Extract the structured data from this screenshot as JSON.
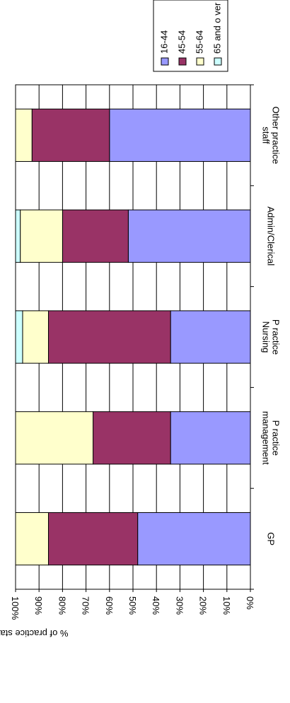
{
  "chart_data": {
    "type": "bar",
    "orientation": "vertical",
    "stacked": true,
    "rotation": "rotated-90-clockwise",
    "title": "",
    "xlabel": "",
    "ylabel": "% of practice staff",
    "ylim": [
      0,
      100
    ],
    "yticks": [
      "0%",
      "10%",
      "20%",
      "30%",
      "40%",
      "50%",
      "60%",
      "70%",
      "80%",
      "90%",
      "100%"
    ],
    "categories": [
      [
        "GP"
      ],
      [
        "P ractice",
        "management"
      ],
      [
        "P ractice",
        "Nursing"
      ],
      [
        "Admin/Clerical"
      ],
      [
        "Other practice",
        "staff"
      ]
    ],
    "series": [
      {
        "name": "16-44",
        "color": "#9999ff",
        "values": [
          48,
          34,
          34,
          52,
          60
        ]
      },
      {
        "name": "45-54",
        "color": "#993366",
        "values": [
          38,
          33,
          52,
          28,
          33
        ]
      },
      {
        "name": "55-64",
        "color": "#ffffcc",
        "values": [
          14,
          33,
          11,
          18,
          7
        ]
      },
      {
        "name": "65 and o ver",
        "color": "#ccffff",
        "values": [
          0,
          0,
          3,
          2,
          0
        ]
      }
    ],
    "grid": true,
    "legend": "top-right"
  }
}
